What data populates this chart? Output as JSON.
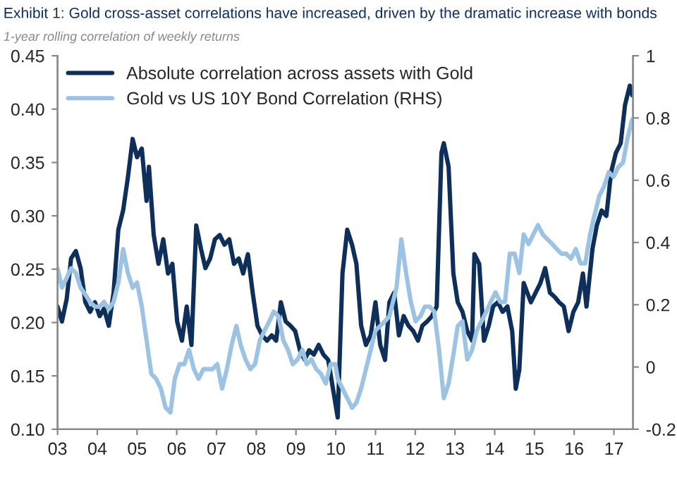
{
  "chart_data": {
    "type": "line",
    "title": "Exhibit 1: Gold cross-asset correlations have increased, driven by the dramatic increase with bonds",
    "subtitle": "1-year rolling correlation of weekly returns",
    "xlim": [
      2003,
      2017.48
    ],
    "xticks": [
      {
        "value": 2003,
        "label": "03"
      },
      {
        "value": 2004,
        "label": "04"
      },
      {
        "value": 2005,
        "label": "05"
      },
      {
        "value": 2006,
        "label": "06"
      },
      {
        "value": 2007,
        "label": "07"
      },
      {
        "value": 2008,
        "label": "08"
      },
      {
        "value": 2009,
        "label": "09"
      },
      {
        "value": 2010,
        "label": "10"
      },
      {
        "value": 2011,
        "label": "11"
      },
      {
        "value": 2012,
        "label": "12"
      },
      {
        "value": 2013,
        "label": "13"
      },
      {
        "value": 2014,
        "label": "14"
      },
      {
        "value": 2015,
        "label": "15"
      },
      {
        "value": 2016,
        "label": "16"
      },
      {
        "value": 2017,
        "label": "17"
      }
    ],
    "ylim": [
      0.1,
      0.45
    ],
    "yticks": [
      {
        "value": 0.1,
        "label": "0.10"
      },
      {
        "value": 0.15,
        "label": "0.15"
      },
      {
        "value": 0.2,
        "label": "0.20"
      },
      {
        "value": 0.25,
        "label": "0.25"
      },
      {
        "value": 0.3,
        "label": "0.30"
      },
      {
        "value": 0.35,
        "label": "0.35"
      },
      {
        "value": 0.4,
        "label": "0.40"
      },
      {
        "value": 0.45,
        "label": "0.45"
      }
    ],
    "y2lim": [
      -0.2,
      1
    ],
    "y2ticks": [
      -0.2,
      0,
      0.2,
      0.4,
      0.6,
      0.8,
      1
    ],
    "grid": false,
    "legend": "top left",
    "marker": "none",
    "line_style": "solid",
    "series": [
      {
        "name": "Absolute correlation across assets with Gold",
        "color": "#0d2f5a",
        "x": [
          2003.0,
          2003.11,
          2003.23,
          2003.34,
          2003.46,
          2003.58,
          2003.7,
          2003.82,
          2003.94,
          2004.06,
          2004.17,
          2004.29,
          2004.41,
          2004.53,
          2004.65,
          2004.77,
          2004.89,
          2005.0,
          2005.12,
          2005.24,
          2005.3,
          2005.42,
          2005.54,
          2005.66,
          2005.78,
          2005.89,
          2006.01,
          2006.13,
          2006.25,
          2006.37,
          2006.49,
          2006.61,
          2006.72,
          2006.84,
          2006.96,
          2007.08,
          2007.2,
          2007.32,
          2007.44,
          2007.56,
          2007.67,
          2007.79,
          2007.91,
          2008.03,
          2008.15,
          2008.27,
          2008.39,
          2008.5,
          2008.62,
          2008.74,
          2008.86,
          2008.98,
          2009.1,
          2009.22,
          2009.33,
          2009.45,
          2009.57,
          2009.69,
          2009.81,
          2009.93,
          2010.05,
          2010.17,
          2010.29,
          2010.41,
          2010.52,
          2010.64,
          2010.76,
          2010.88,
          2011.0,
          2011.12,
          2011.24,
          2011.35,
          2011.47,
          2011.59,
          2011.71,
          2011.83,
          2011.95,
          2012.07,
          2012.18,
          2012.3,
          2012.42,
          2012.54,
          2012.66,
          2012.72,
          2012.84,
          2012.96,
          2013.07,
          2013.19,
          2013.31,
          2013.43,
          2013.49,
          2013.61,
          2013.73,
          2013.85,
          2013.96,
          2014.08,
          2014.2,
          2014.32,
          2014.44,
          2014.53,
          2014.62,
          2014.73,
          2014.91,
          2015.03,
          2015.15,
          2015.27,
          2015.39,
          2015.51,
          2015.62,
          2015.74,
          2015.86,
          2015.98,
          2016.1,
          2016.22,
          2016.31,
          2016.46,
          2016.57,
          2016.69,
          2016.81,
          2016.93,
          2017.05,
          2017.17,
          2017.28,
          2017.4,
          2017.46
        ],
        "values": [
          0.215,
          0.201,
          0.222,
          0.26,
          0.267,
          0.251,
          0.219,
          0.21,
          0.219,
          0.206,
          0.213,
          0.197,
          0.228,
          0.287,
          0.305,
          0.336,
          0.372,
          0.355,
          0.363,
          0.314,
          0.346,
          0.282,
          0.255,
          0.278,
          0.246,
          0.255,
          0.201,
          0.183,
          0.215,
          0.179,
          0.291,
          0.269,
          0.251,
          0.26,
          0.278,
          0.282,
          0.273,
          0.278,
          0.255,
          0.26,
          0.246,
          0.264,
          0.228,
          0.197,
          0.188,
          0.183,
          0.188,
          0.183,
          0.219,
          0.201,
          0.197,
          0.192,
          0.174,
          0.165,
          0.174,
          0.17,
          0.179,
          0.17,
          0.165,
          0.138,
          0.111,
          0.246,
          0.287,
          0.273,
          0.255,
          0.197,
          0.179,
          0.188,
          0.219,
          0.179,
          0.165,
          0.219,
          0.228,
          0.188,
          0.206,
          0.197,
          0.192,
          0.183,
          0.197,
          0.201,
          0.206,
          0.215,
          0.359,
          0.368,
          0.346,
          0.246,
          0.219,
          0.21,
          0.192,
          0.183,
          0.264,
          0.255,
          0.183,
          0.197,
          0.215,
          0.219,
          0.21,
          0.215,
          0.192,
          0.138,
          0.156,
          0.237,
          0.219,
          0.228,
          0.237,
          0.251,
          0.228,
          0.224,
          0.219,
          0.215,
          0.192,
          0.21,
          0.219,
          0.246,
          0.215,
          0.269,
          0.291,
          0.305,
          0.3,
          0.341,
          0.359,
          0.368,
          0.404,
          0.422,
          0.413
        ]
      },
      {
        "name": "Gold vs US 10Y Bond Correlation (RHS)",
        "color": "#9cc3e4",
        "axis": "y2",
        "x": [
          2003.0,
          2003.11,
          2003.23,
          2003.34,
          2003.46,
          2003.58,
          2003.7,
          2003.82,
          2003.94,
          2004.06,
          2004.17,
          2004.29,
          2004.41,
          2004.53,
          2004.65,
          2004.77,
          2004.89,
          2005.0,
          2005.12,
          2005.24,
          2005.36,
          2005.48,
          2005.6,
          2005.72,
          2005.84,
          2005.95,
          2006.07,
          2006.19,
          2006.31,
          2006.43,
          2006.55,
          2006.67,
          2006.78,
          2006.9,
          2007.02,
          2007.14,
          2007.26,
          2007.38,
          2007.5,
          2007.61,
          2007.73,
          2007.85,
          2007.97,
          2008.09,
          2008.21,
          2008.33,
          2008.44,
          2008.56,
          2008.68,
          2008.8,
          2008.92,
          2009.04,
          2009.16,
          2009.27,
          2009.39,
          2009.51,
          2009.63,
          2009.75,
          2009.87,
          2009.99,
          2010.05,
          2010.17,
          2010.29,
          2010.41,
          2010.52,
          2010.64,
          2010.76,
          2010.88,
          2011.0,
          2011.12,
          2011.24,
          2011.35,
          2011.53,
          2011.65,
          2011.77,
          2011.89,
          2012.01,
          2012.13,
          2012.24,
          2012.36,
          2012.48,
          2012.6,
          2012.72,
          2012.84,
          2012.96,
          2013.07,
          2013.19,
          2013.31,
          2013.43,
          2013.55,
          2013.67,
          2013.79,
          2013.9,
          2014.02,
          2014.14,
          2014.26,
          2014.38,
          2014.5,
          2014.62,
          2014.73,
          2014.85,
          2014.97,
          2015.09,
          2015.21,
          2015.33,
          2015.45,
          2015.56,
          2015.68,
          2015.8,
          2015.92,
          2016.04,
          2016.16,
          2016.28,
          2016.4,
          2016.51,
          2016.63,
          2016.75,
          2016.87,
          2016.99,
          2017.11,
          2017.23,
          2017.34,
          2017.46
        ],
        "values": [
          0.317,
          0.255,
          0.286,
          0.317,
          0.302,
          0.255,
          0.232,
          0.209,
          0.194,
          0.194,
          0.209,
          0.186,
          0.209,
          0.271,
          0.379,
          0.302,
          0.255,
          0.271,
          0.194,
          0.086,
          -0.022,
          -0.038,
          -0.069,
          -0.131,
          -0.146,
          -0.038,
          0.009,
          0.009,
          0.055,
          -0.007,
          -0.038,
          -0.007,
          -0.007,
          -0.007,
          0.009,
          -0.069,
          -0.007,
          0.07,
          0.132,
          0.07,
          0.024,
          -0.007,
          0.009,
          0.086,
          0.117,
          0.147,
          0.178,
          0.163,
          0.086,
          0.055,
          0.009,
          0.024,
          0.055,
          0.009,
          0.024,
          -0.007,
          -0.022,
          -0.053,
          0.009,
          0.009,
          -0.038,
          -0.069,
          -0.1,
          -0.131,
          -0.115,
          -0.069,
          -0.007,
          0.055,
          0.117,
          0.132,
          0.147,
          0.163,
          0.255,
          0.41,
          0.302,
          0.209,
          0.147,
          0.163,
          0.194,
          0.194,
          0.178,
          0.055,
          -0.1,
          -0.053,
          0.039,
          0.132,
          0.147,
          0.024,
          0.055,
          0.117,
          0.147,
          0.178,
          0.209,
          0.24,
          0.209,
          0.209,
          0.364,
          0.364,
          0.302,
          0.426,
          0.395,
          0.426,
          0.456,
          0.426,
          0.41,
          0.395,
          0.379,
          0.364,
          0.364,
          0.348,
          0.379,
          0.333,
          0.333,
          0.426,
          0.487,
          0.549,
          0.58,
          0.626,
          0.611,
          0.642,
          0.657,
          0.734,
          0.796
        ]
      }
    ]
  }
}
